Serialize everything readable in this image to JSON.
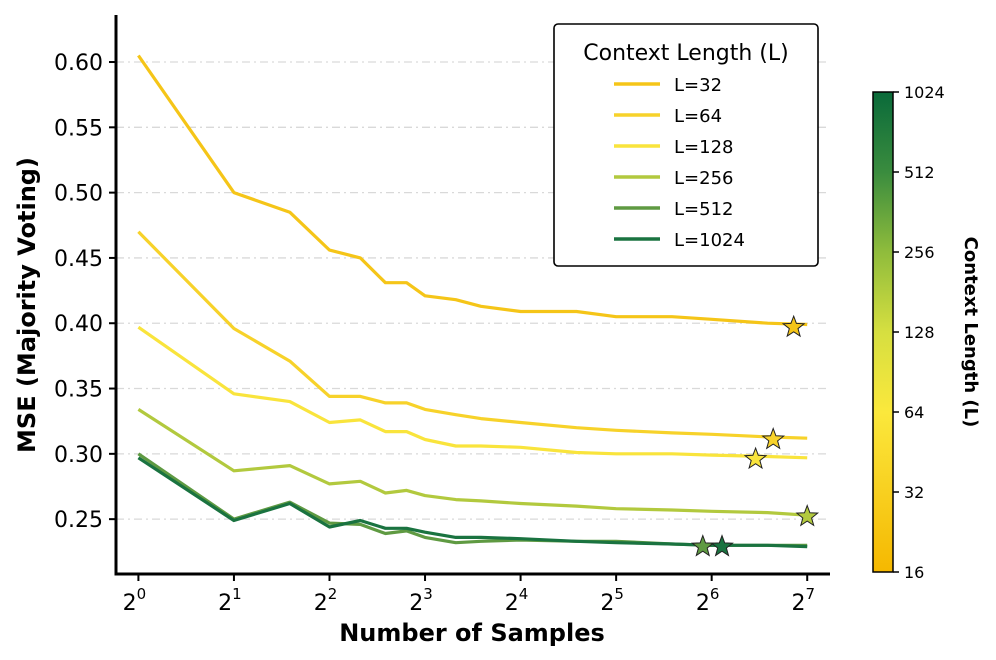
{
  "chart_data": {
    "type": "line",
    "xscale": "log2",
    "xlim": [
      0.85,
      151
    ],
    "ylim": [
      0.208,
      0.636
    ],
    "xlabel": "Number of Samples",
    "ylabel": "MSE (Majority Voting)",
    "xticks": [
      {
        "value": 1,
        "base": "2",
        "exp": "0"
      },
      {
        "value": 2,
        "base": "2",
        "exp": "1"
      },
      {
        "value": 4,
        "base": "2",
        "exp": "2"
      },
      {
        "value": 8,
        "base": "2",
        "exp": "3"
      },
      {
        "value": 16,
        "base": "2",
        "exp": "4"
      },
      {
        "value": 32,
        "base": "2",
        "exp": "5"
      },
      {
        "value": 64,
        "base": "2",
        "exp": "6"
      },
      {
        "value": 128,
        "base": "2",
        "exp": "7"
      }
    ],
    "yticks": [
      {
        "value": 0.25,
        "label": "0.25"
      },
      {
        "value": 0.3,
        "label": "0.30"
      },
      {
        "value": 0.35,
        "label": "0.35"
      },
      {
        "value": 0.4,
        "label": "0.40"
      },
      {
        "value": 0.45,
        "label": "0.45"
      },
      {
        "value": 0.5,
        "label": "0.50"
      },
      {
        "value": 0.55,
        "label": "0.55"
      },
      {
        "value": 0.6,
        "label": "0.60"
      }
    ],
    "grid": "y-dashed",
    "legend": {
      "title": "Context Length (L)",
      "position": "top-right"
    },
    "series": [
      {
        "name": "L=32",
        "color": "#f5c518",
        "x": [
          1,
          2,
          3,
          4,
          5,
          6,
          7,
          8,
          10,
          12,
          16,
          24,
          32,
          48,
          64,
          96,
          128
        ],
        "y": [
          0.605,
          0.5,
          0.485,
          0.456,
          0.45,
          0.431,
          0.431,
          0.421,
          0.418,
          0.413,
          0.409,
          0.409,
          0.405,
          0.405,
          0.403,
          0.4,
          0.399
        ],
        "best": {
          "x": 116,
          "y": 0.397
        }
      },
      {
        "name": "L=64",
        "color": "#f7d22a",
        "x": [
          1,
          2,
          3,
          4,
          5,
          6,
          7,
          8,
          10,
          12,
          16,
          24,
          32,
          48,
          64,
          96,
          128
        ],
        "y": [
          0.47,
          0.396,
          0.371,
          0.344,
          0.344,
          0.339,
          0.339,
          0.334,
          0.33,
          0.327,
          0.324,
          0.32,
          0.318,
          0.316,
          0.315,
          0.313,
          0.312
        ],
        "best": {
          "x": 100,
          "y": 0.311
        }
      },
      {
        "name": "L=128",
        "color": "#f9e43c",
        "x": [
          1,
          2,
          3,
          4,
          5,
          6,
          7,
          8,
          10,
          12,
          16,
          24,
          32,
          48,
          64,
          96,
          128
        ],
        "y": [
          0.397,
          0.346,
          0.34,
          0.324,
          0.326,
          0.317,
          0.317,
          0.311,
          0.306,
          0.306,
          0.305,
          0.301,
          0.3,
          0.3,
          0.299,
          0.298,
          0.297
        ],
        "best": {
          "x": 88,
          "y": 0.296
        }
      },
      {
        "name": "L=256",
        "color": "#b2c93e",
        "x": [
          1,
          2,
          3,
          4,
          5,
          6,
          7,
          8,
          10,
          12,
          16,
          24,
          32,
          48,
          64,
          96,
          128
        ],
        "y": [
          0.334,
          0.287,
          0.291,
          0.277,
          0.279,
          0.27,
          0.272,
          0.268,
          0.265,
          0.264,
          0.262,
          0.26,
          0.258,
          0.257,
          0.256,
          0.255,
          0.253
        ],
        "best": {
          "x": 128,
          "y": 0.252
        }
      },
      {
        "name": "L=512",
        "color": "#5f9a42",
        "x": [
          1,
          2,
          3,
          4,
          5,
          6,
          7,
          8,
          10,
          12,
          16,
          24,
          32,
          48,
          64,
          96,
          128
        ],
        "y": [
          0.3,
          0.25,
          0.263,
          0.247,
          0.246,
          0.239,
          0.241,
          0.236,
          0.232,
          0.233,
          0.234,
          0.233,
          0.233,
          0.231,
          0.23,
          0.23,
          0.23
        ],
        "best": {
          "x": 60,
          "y": 0.229
        }
      },
      {
        "name": "L=1024",
        "color": "#1a7340",
        "x": [
          1,
          2,
          3,
          4,
          5,
          6,
          7,
          8,
          10,
          12,
          16,
          24,
          32,
          48,
          64,
          96,
          128
        ],
        "y": [
          0.297,
          0.249,
          0.262,
          0.244,
          0.249,
          0.243,
          0.243,
          0.24,
          0.236,
          0.236,
          0.235,
          0.233,
          0.232,
          0.231,
          0.23,
          0.23,
          0.229
        ],
        "best": {
          "x": 69,
          "y": 0.229
        }
      }
    ],
    "colorbar": {
      "title": "Context Length (L)",
      "scale": "log2",
      "range": [
        16,
        1024
      ],
      "ticks": [
        "16",
        "32",
        "64",
        "128",
        "256",
        "512",
        "1024"
      ],
      "colors": [
        "#f5b800",
        "#f8d020",
        "#fbe83c",
        "#d6df40",
        "#8fbc3c",
        "#3a8c3e",
        "#0a6a3a"
      ]
    }
  }
}
